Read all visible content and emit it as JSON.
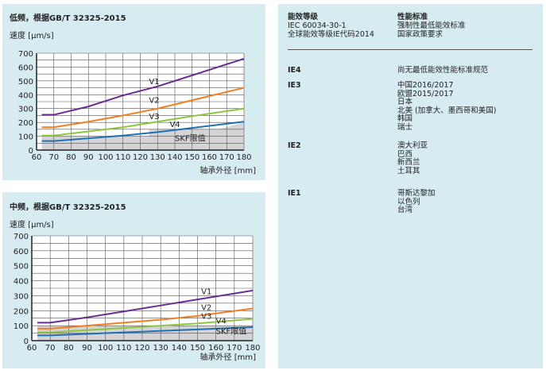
{
  "colors": {
    "panel": "#d7ecf1",
    "V1": "#6a2c91",
    "V2": "#f07f22",
    "V3": "#8dc63f",
    "V4": "#1f6fb5",
    "skf": "#d4d4d6"
  },
  "chart_data": [
    {
      "type": "line",
      "title": "低频，根据GB/T 32325-2015",
      "ylabel": "速度 [µm/s]",
      "xlabel": "轴承外径 [mm]",
      "xlim": [
        60,
        180
      ],
      "ylim": [
        0,
        700
      ],
      "xticks": [
        60,
        70,
        80,
        90,
        100,
        110,
        120,
        130,
        140,
        150,
        160,
        170,
        180
      ],
      "yticks": [
        0,
        100,
        200,
        300,
        400,
        500,
        600,
        700
      ],
      "grid": true,
      "series": [
        {
          "name": "V1",
          "x": [
            63,
            70,
            90,
            110,
            130,
            150,
            180
          ],
          "y": [
            255,
            255,
            315,
            395,
            460,
            540,
            660
          ]
        },
        {
          "name": "V2",
          "x": [
            63,
            70,
            90,
            110,
            130,
            150,
            180
          ],
          "y": [
            165,
            165,
            205,
            250,
            300,
            360,
            450
          ]
        },
        {
          "name": "V3",
          "x": [
            63,
            70,
            90,
            110,
            130,
            150,
            180
          ],
          "y": [
            105,
            105,
            135,
            165,
            205,
            245,
            300
          ]
        },
        {
          "name": "V4",
          "x": [
            63,
            70,
            90,
            110,
            130,
            150,
            180
          ],
          "y": [
            65,
            65,
            85,
            105,
            130,
            160,
            205
          ]
        }
      ],
      "area": {
        "name": "SKF限值",
        "x": [
          63,
          125,
          125,
          165,
          180
        ],
        "y": [
          100,
          100,
          150,
          150,
          200
        ]
      }
    },
    {
      "type": "line",
      "title": "中频，根据GB/T 32325-2015",
      "ylabel": "速度 [µm/s]",
      "xlabel": "轴承外径 [mm]",
      "xlim": [
        60,
        180
      ],
      "ylim": [
        0,
        700
      ],
      "xticks": [
        60,
        70,
        80,
        90,
        100,
        110,
        120,
        130,
        140,
        150,
        160,
        170,
        180
      ],
      "yticks": [
        0,
        100,
        200,
        300,
        400,
        500,
        600,
        700
      ],
      "grid": true,
      "series": [
        {
          "name": "V1",
          "x": [
            63,
            70,
            90,
            110,
            130,
            150,
            180
          ],
          "y": [
            120,
            120,
            155,
            195,
            235,
            275,
            335
          ]
        },
        {
          "name": "V2",
          "x": [
            63,
            70,
            90,
            110,
            130,
            150,
            180
          ],
          "y": [
            80,
            80,
            100,
            120,
            140,
            165,
            215
          ]
        },
        {
          "name": "V3",
          "x": [
            63,
            70,
            90,
            110,
            130,
            150,
            180
          ],
          "y": [
            55,
            55,
            70,
            85,
            100,
            115,
            145
          ]
        },
        {
          "name": "V4",
          "x": [
            63,
            70,
            90,
            110,
            130,
            150,
            180
          ],
          "y": [
            35,
            35,
            45,
            55,
            65,
            75,
            90
          ]
        }
      ],
      "area": {
        "name": "SKF限值",
        "x": [
          63,
          180
        ],
        "y": [
          100,
          100
        ]
      }
    }
  ],
  "table": {
    "header": {
      "col1": [
        "能效等级",
        "IEC 60034-30-1",
        "全球能效等级IE代码2014"
      ],
      "col2": [
        "性能标准",
        "强制性最低能效标准",
        "国家政策要求"
      ]
    },
    "rows": [
      {
        "class": "IE4",
        "values": [
          "尚无最低能效性能标准规范"
        ]
      },
      {
        "class": "IE3",
        "values": [
          "中国2016/2017",
          "欧盟2015/2017",
          "日本",
          "北美 (加拿大、墨西哥和美国)",
          "韩国",
          "瑞士"
        ]
      },
      {
        "class": "IE2",
        "values": [
          "澳大利亚",
          "巴西",
          "新西兰",
          "土耳其"
        ]
      },
      {
        "class": "IE1",
        "values": [
          "哥斯达黎加",
          "以色列",
          "台湾"
        ]
      }
    ]
  }
}
